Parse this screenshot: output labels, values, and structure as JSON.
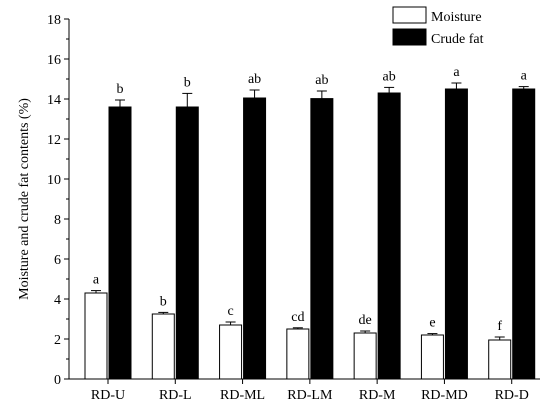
{
  "chart_data": {
    "type": "bar",
    "categories": [
      "RD-U",
      "RD-L",
      "RD-ML",
      "RD-LM",
      "RD-M",
      "RD-MD",
      "RD-D"
    ],
    "series": [
      {
        "name": "Moisture",
        "color": "#ffffff",
        "values": [
          4.3,
          3.25,
          2.7,
          2.5,
          2.3,
          2.2,
          1.95
        ],
        "errors": [
          0.12,
          0.08,
          0.15,
          0.06,
          0.1,
          0.07,
          0.15
        ],
        "letters": [
          "a",
          "b",
          "c",
          "cd",
          "de",
          "e",
          "f"
        ]
      },
      {
        "name": "Crude fat",
        "color": "#000000",
        "values": [
          13.6,
          13.6,
          14.05,
          14.02,
          14.3,
          14.5,
          14.5
        ],
        "errors": [
          0.35,
          0.68,
          0.4,
          0.38,
          0.28,
          0.3,
          0.12
        ],
        "letters": [
          "b",
          "b",
          "ab",
          "ab",
          "ab",
          "a",
          "a"
        ]
      }
    ],
    "ylabel": "Moisture and crude fat contents (%)",
    "xlabel": "",
    "ylim": [
      0,
      18
    ],
    "yticks": [
      0,
      2,
      4,
      6,
      8,
      10,
      12,
      14,
      16,
      18
    ],
    "grid": false,
    "legend_position": "top-right"
  }
}
